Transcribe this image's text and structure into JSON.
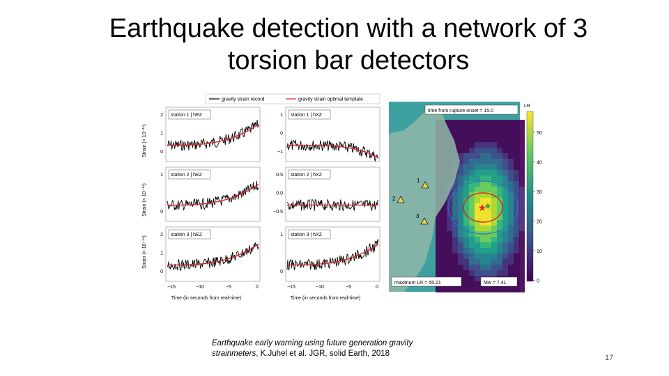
{
  "slide": {
    "title_line1": "Earthquake detection with a network of 3",
    "title_line2": "torsion bar detectors",
    "caption_italic": "Earthquake early warning using future generation gravity strainmeters",
    "caption_rest": ", K.Juhel et al. JGR, solid Earth, 2018",
    "page_number": "17"
  },
  "figure": {
    "legend": {
      "record": "gravity strain record",
      "template": "gravity strain optimal template"
    },
    "ylabel": "Strain (× 10⁻¹⁴)",
    "xlabel": "Time (in seconds from real-time)",
    "x_ticks": [
      "−15",
      "−10",
      "−5",
      "0"
    ],
    "panels": [
      {
        "label": "station 1 | hEZ",
        "yticks": [
          "2",
          "1",
          "0"
        ]
      },
      {
        "label": "station 1 | hXZ",
        "yticks": [
          "1",
          "0",
          "−1"
        ]
      },
      {
        "label": "station 2 | hEZ",
        "yticks": [
          "1",
          "0"
        ]
      },
      {
        "label": "station 2 | hXZ",
        "yticks": [
          "0.5",
          "0.0",
          "−0.5"
        ]
      },
      {
        "label": "station 3 | hEZ",
        "yticks": [
          "2",
          "1",
          "0"
        ]
      },
      {
        "label": "station 3 | hXZ",
        "yticks": [
          "1",
          "0"
        ]
      }
    ],
    "map": {
      "time_label": "time from rupture onset = 15.0",
      "max_label": "maximum LR = 55.21",
      "mw_label": "Mw = 7.41",
      "colorbar_title": "LR",
      "colorbar_ticks": [
        "50",
        "40",
        "30",
        "20",
        "10",
        "0"
      ],
      "stations": [
        "1",
        "2",
        "3"
      ],
      "colors": {
        "low": "#440154",
        "mid": "#21918c",
        "high": "#fde725"
      }
    }
  }
}
